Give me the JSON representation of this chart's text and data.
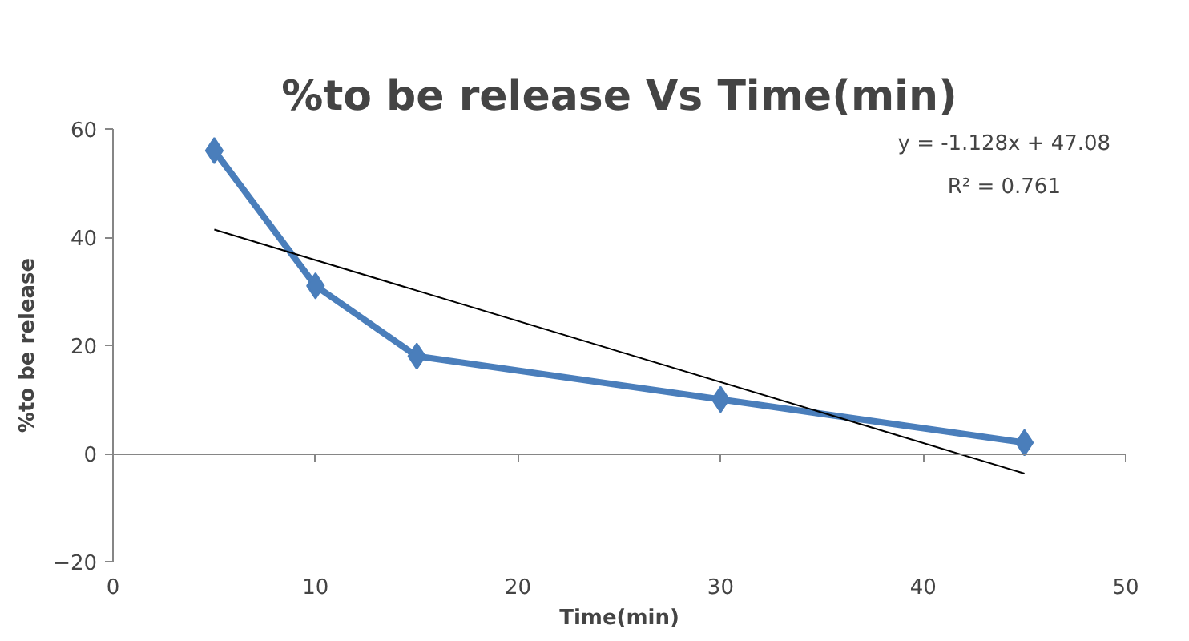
{
  "chart_data": {
    "type": "line",
    "title": "%to be release Vs Time(min)",
    "xlabel": "Time(min)",
    "ylabel": "%to be release",
    "x": [
      5,
      10,
      15,
      30,
      45
    ],
    "series": [
      {
        "color": "#4a7ebb",
        "values": [
          56,
          31,
          18,
          10,
          2
        ],
        "marker": "diamond"
      },
      {
        "type": "line",
        "color": "#000000",
        "x": [
          5,
          45
        ],
        "values": [
          41.4,
          -3.7
        ],
        "marker": "none"
      }
    ],
    "xlim": [
      0,
      50
    ],
    "xticks": [
      0,
      10,
      20,
      30,
      40,
      50
    ],
    "ylim": [
      -20,
      60
    ],
    "yticks": [
      -20,
      0,
      20,
      40,
      60
    ],
    "annotations": [
      "y = -1.128x + 47.08",
      "R² = 0.761"
    ]
  }
}
